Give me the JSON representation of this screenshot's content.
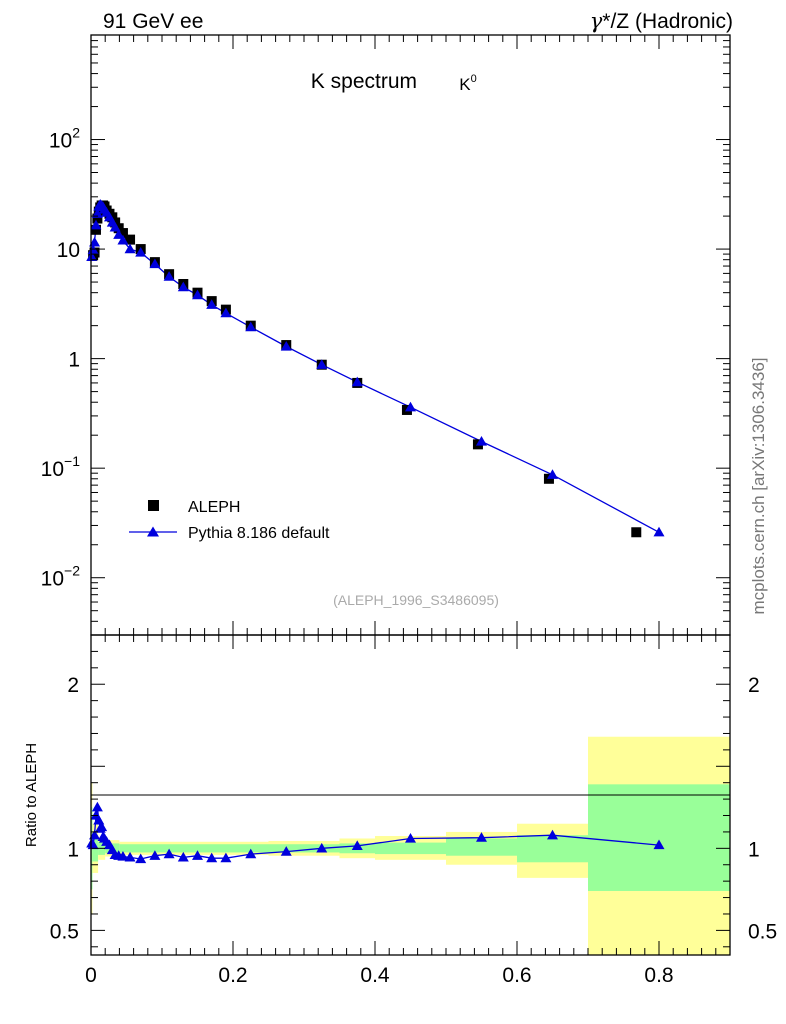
{
  "header": {
    "left": "91 GeV ee",
    "right_gamma": "γ",
    "right_star": "*",
    "right_rest": "/Z (Hadronic)"
  },
  "side_label": "mcplots.cern.ch [arXiv:1306.3436]",
  "chart_data": {
    "type": "scatter",
    "title": "K spectrum",
    "title_particle": "K",
    "title_particle_sup": "0",
    "analysis_label": "(ALEPH_1996_S3486095)",
    "colors": {
      "data": "#000000",
      "mc": "#0000dd",
      "band_inner": "#99ff99",
      "band_outer": "#ffff99",
      "frame": "#000000"
    },
    "legend_placement": "lower-left",
    "main_panel": {
      "yscale": "log",
      "ylim": [
        0.003,
        900
      ],
      "xlim": [
        0,
        0.9
      ],
      "ytick_labels": [
        {
          "value": 0.01,
          "base": "10",
          "exp": "−2"
        },
        {
          "value": 0.1,
          "base": "10",
          "exp": "−1"
        },
        {
          "value": 1,
          "base": "1",
          "exp": ""
        },
        {
          "value": 10,
          "base": "10",
          "exp": ""
        },
        {
          "value": 100,
          "base": "10",
          "exp": "2"
        }
      ],
      "series": [
        {
          "name": "ALEPH",
          "marker": "square",
          "x": [
            0.003,
            0.005,
            0.007,
            0.009,
            0.011,
            0.013,
            0.015,
            0.017,
            0.019,
            0.022,
            0.026,
            0.03,
            0.034,
            0.039,
            0.045,
            0.055,
            0.07,
            0.09,
            0.11,
            0.13,
            0.15,
            0.17,
            0.19,
            0.225,
            0.275,
            0.325,
            0.375,
            0.445,
            0.545,
            0.645,
            0.768
          ],
          "y": [
            8.8,
            9.3,
            15,
            19,
            22,
            24,
            25,
            25,
            24.5,
            22.5,
            21,
            19.5,
            17.5,
            15.5,
            14,
            12.2,
            10,
            7.6,
            5.9,
            4.8,
            4.0,
            3.35,
            2.8,
            2.0,
            1.33,
            0.88,
            0.6,
            0.34,
            0.165,
            0.08,
            0.026
          ]
        },
        {
          "name": "Pythia 8.186 default",
          "marker": "triangle",
          "x": [
            0.001,
            0.003,
            0.005,
            0.007,
            0.009,
            0.011,
            0.013,
            0.015,
            0.017,
            0.019,
            0.022,
            0.026,
            0.03,
            0.034,
            0.039,
            0.045,
            0.055,
            0.07,
            0.09,
            0.11,
            0.13,
            0.15,
            0.17,
            0.19,
            0.225,
            0.275,
            0.325,
            0.375,
            0.45,
            0.55,
            0.65,
            0.8
          ],
          "y": [
            8.5,
            9.8,
            11.5,
            16.5,
            21,
            24.5,
            25.5,
            25,
            24.2,
            23,
            21.5,
            19.5,
            17.5,
            15.8,
            13.5,
            12,
            10,
            9.3,
            7.3,
            5.6,
            4.5,
            3.8,
            3.1,
            2.6,
            1.94,
            1.29,
            0.88,
            0.61,
            0.36,
            0.175,
            0.087,
            0.026
          ]
        }
      ]
    },
    "ratio_panel": {
      "ylabel": "Ratio to ALEPH",
      "ylim": [
        0.35,
        2.3
      ],
      "ytick_labels": [
        {
          "value": 0.5,
          "label": "0.5"
        },
        {
          "value": 1,
          "label": "1"
        },
        {
          "value": 2,
          "label": "2"
        }
      ],
      "ratio": {
        "x": [
          0.001,
          0.003,
          0.005,
          0.007,
          0.009,
          0.011,
          0.013,
          0.015,
          0.017,
          0.019,
          0.022,
          0.026,
          0.03,
          0.034,
          0.039,
          0.045,
          0.055,
          0.07,
          0.09,
          0.11,
          0.13,
          0.15,
          0.17,
          0.19,
          0.225,
          0.275,
          0.325,
          0.375,
          0.45,
          0.55,
          0.65,
          0.8
        ],
        "y": [
          1.03,
          1.02,
          1.08,
          1.2,
          1.25,
          1.17,
          1.12,
          1.13,
          1.07,
          1.06,
          1.04,
          1.02,
          0.99,
          0.96,
          0.955,
          0.95,
          0.945,
          0.935,
          0.955,
          0.965,
          0.945,
          0.955,
          0.94,
          0.94,
          0.965,
          0.98,
          1.0,
          1.015,
          1.06,
          1.065,
          1.08,
          1.02
        ]
      },
      "bands": [
        {
          "x0": 0.0,
          "x1": 0.002,
          "inner": [
            0.75,
            1.25
          ],
          "outer": [
            0.6,
            1.4
          ]
        },
        {
          "x0": 0.002,
          "x1": 0.01,
          "inner": [
            0.92,
            1.08
          ],
          "outer": [
            0.85,
            1.15
          ]
        },
        {
          "x0": 0.01,
          "x1": 0.02,
          "inner": [
            0.96,
            1.04
          ],
          "outer": [
            0.93,
            1.07
          ]
        },
        {
          "x0": 0.02,
          "x1": 0.04,
          "inner": [
            0.97,
            1.03
          ],
          "outer": [
            0.95,
            1.05
          ]
        },
        {
          "x0": 0.04,
          "x1": 0.2,
          "inner": [
            0.975,
            1.025
          ],
          "outer": [
            0.96,
            1.04
          ]
        },
        {
          "x0": 0.2,
          "x1": 0.25,
          "inner": [
            0.975,
            1.025
          ],
          "outer": [
            0.96,
            1.04
          ]
        },
        {
          "x0": 0.25,
          "x1": 0.3,
          "inner": [
            0.975,
            1.025
          ],
          "outer": [
            0.955,
            1.045
          ]
        },
        {
          "x0": 0.3,
          "x1": 0.35,
          "inner": [
            0.975,
            1.025
          ],
          "outer": [
            0.955,
            1.045
          ]
        },
        {
          "x0": 0.35,
          "x1": 0.4,
          "inner": [
            0.97,
            1.03
          ],
          "outer": [
            0.94,
            1.06
          ]
        },
        {
          "x0": 0.4,
          "x1": 0.5,
          "inner": [
            0.965,
            1.035
          ],
          "outer": [
            0.93,
            1.075
          ]
        },
        {
          "x0": 0.5,
          "x1": 0.6,
          "inner": [
            0.955,
            1.06
          ],
          "outer": [
            0.9,
            1.1
          ]
        },
        {
          "x0": 0.6,
          "x1": 0.7,
          "inner": [
            0.915,
            1.08
          ],
          "outer": [
            0.82,
            1.15
          ]
        },
        {
          "x0": 0.7,
          "x1": 0.9,
          "inner": [
            0.74,
            1.39
          ],
          "outer": [
            0.35,
            1.68
          ]
        }
      ]
    },
    "x_tick_labels": [
      {
        "value": 0,
        "label": "0"
      },
      {
        "value": 0.2,
        "label": "0.2"
      },
      {
        "value": 0.4,
        "label": "0.4"
      },
      {
        "value": 0.6,
        "label": "0.6"
      },
      {
        "value": 0.8,
        "label": "0.8"
      }
    ]
  }
}
